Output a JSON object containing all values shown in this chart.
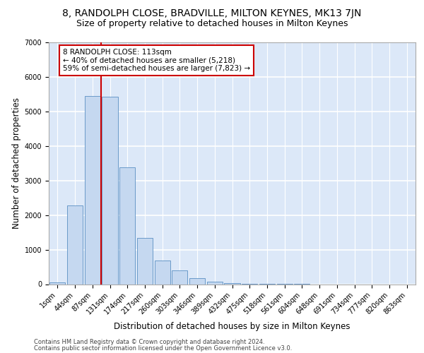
{
  "title_line1": "8, RANDOLPH CLOSE, BRADVILLE, MILTON KEYNES, MK13 7JN",
  "title_line2": "Size of property relative to detached houses in Milton Keynes",
  "xlabel": "Distribution of detached houses by size in Milton Keynes",
  "ylabel": "Number of detached properties",
  "footer_line1": "Contains HM Land Registry data © Crown copyright and database right 2024.",
  "footer_line2": "Contains public sector information licensed under the Open Government Licence v3.0.",
  "annotation_line1": "8 RANDOLPH CLOSE: 113sqm",
  "annotation_line2": "← 40% of detached houses are smaller (5,218)",
  "annotation_line3": "59% of semi-detached houses are larger (7,823) →",
  "bar_color": "#c5d8f0",
  "bar_edge_color": "#5a8fc3",
  "bg_color": "#dce8f8",
  "vline_color": "#cc0000",
  "categories": [
    "1sqm",
    "44sqm",
    "87sqm",
    "131sqm",
    "174sqm",
    "217sqm",
    "260sqm",
    "303sqm",
    "346sqm",
    "389sqm",
    "432sqm",
    "475sqm",
    "518sqm",
    "561sqm",
    "604sqm",
    "648sqm",
    "691sqm",
    "734sqm",
    "777sqm",
    "820sqm",
    "863sqm"
  ],
  "values": [
    55,
    2270,
    5450,
    5420,
    3380,
    1330,
    680,
    400,
    175,
    75,
    25,
    10,
    3,
    2,
    1,
    0,
    0,
    0,
    0,
    0,
    0
  ],
  "ylim": [
    0,
    7000
  ],
  "yticks": [
    0,
    1000,
    2000,
    3000,
    4000,
    5000,
    6000,
    7000
  ],
  "grid_color": "#ffffff",
  "title_fontsize": 10,
  "subtitle_fontsize": 9,
  "axis_fontsize": 8.5,
  "tick_fontsize": 7,
  "footer_fontsize": 6,
  "annot_fontsize": 7.5
}
